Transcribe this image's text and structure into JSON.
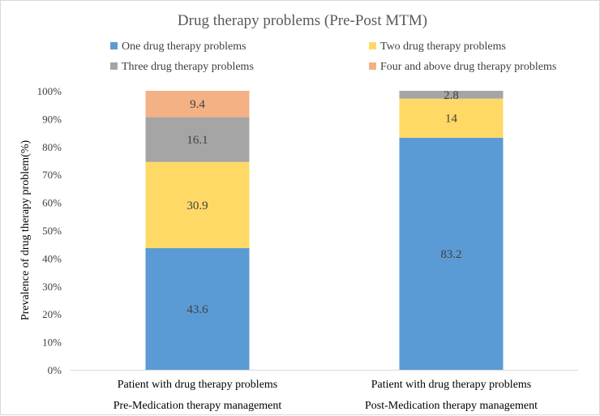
{
  "chart_data": {
    "type": "bar",
    "stacked": true,
    "title": "Drug therapy problems (Pre-Post MTM)",
    "ylabel": "Prevalence of drug therapy problem(%)",
    "xlabel": "",
    "ylim": [
      0,
      100
    ],
    "yticks": [
      "0%",
      "10%",
      "20%",
      "30%",
      "40%",
      "50%",
      "60%",
      "70%",
      "80%",
      "90%",
      "100%"
    ],
    "grid": false,
    "legend_position": "top",
    "categories": [
      [
        "Patient with drug therapy problems",
        "Pre-Medication therapy management"
      ],
      [
        "Patient with drug therapy problems",
        "Post-Medication therapy management"
      ]
    ],
    "series": [
      {
        "name": "One drug therapy problems",
        "color": "#5B9BD5",
        "values": [
          43.6,
          83.2
        ],
        "labels": [
          "43.6",
          "83.2"
        ]
      },
      {
        "name": "Two drug therapy problems",
        "color": "#FFD966",
        "values": [
          30.9,
          14
        ],
        "labels": [
          "30.9",
          "14"
        ]
      },
      {
        "name": "Three drug therapy problems",
        "color": "#A5A5A5",
        "values": [
          16.1,
          2.8
        ],
        "labels": [
          "16.1",
          "2.8"
        ]
      },
      {
        "name": "Four and above drug therapy problems",
        "color": "#F4B183",
        "values": [
          9.4,
          0
        ],
        "labels": [
          "9.4",
          ""
        ]
      }
    ]
  }
}
